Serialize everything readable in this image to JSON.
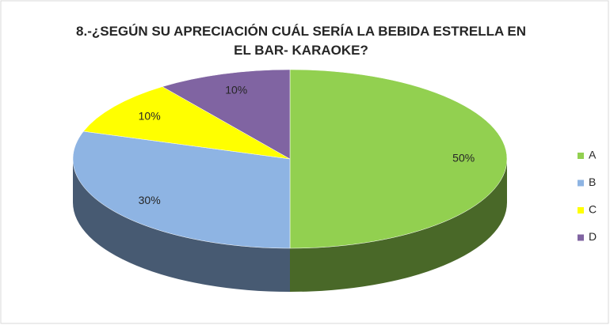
{
  "chart_data": {
    "type": "pie3d",
    "title": "8.-¿SEGÚN SU APRECIACIÓN CUÁL SERÍA LA BEBIDA ESTRELLA EN EL BAR- KARAOKE?",
    "categories": [
      "A",
      "B",
      "C",
      "D"
    ],
    "values": [
      50,
      30,
      10,
      10
    ],
    "value_labels": [
      "50%",
      "30%",
      "10%",
      "10%"
    ],
    "colors": [
      "#92d050",
      "#8eb4e3",
      "#ffff00",
      "#8064a2"
    ],
    "legend": "right"
  }
}
